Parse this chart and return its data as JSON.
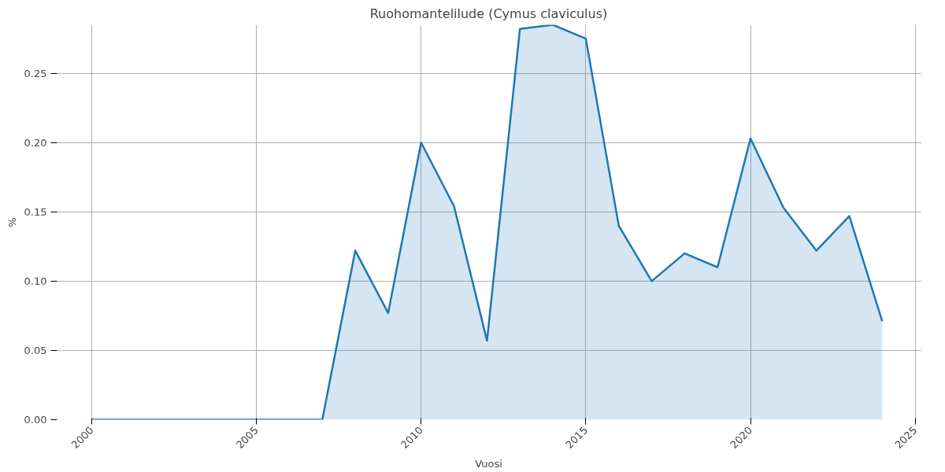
{
  "chart_data": {
    "type": "area",
    "title": "Ruohomantelilude (Cymus claviculus)",
    "xlabel": "Vuosi",
    "ylabel": "%",
    "x": [
      2000,
      2001,
      2002,
      2003,
      2004,
      2005,
      2006,
      2007,
      2008,
      2009,
      2010,
      2011,
      2012,
      2013,
      2014,
      2015,
      2016,
      2017,
      2018,
      2019,
      2020,
      2021,
      2022,
      2023,
      2024
    ],
    "series": [
      {
        "color": "#1f77b4",
        "values": [
          0,
          0,
          0,
          0,
          0,
          0,
          0,
          0,
          0.122,
          0.077,
          0.2,
          0.154,
          0.057,
          0.282,
          0.285,
          0.275,
          0.14,
          0.1,
          0.12,
          0.11,
          0.203,
          0.153,
          0.122,
          0.147,
          0.071
        ]
      }
    ],
    "xlim": [
      1998.9,
      2025.2
    ],
    "ylim": [
      0,
      0.285
    ],
    "xticks": [
      2000,
      2005,
      2010,
      2015,
      2020,
      2025
    ],
    "yticks": [
      {
        "value": 0,
        "label": "0.00"
      },
      {
        "value": 0.05,
        "label": "0.05"
      },
      {
        "value": 0.1,
        "label": "0.10"
      },
      {
        "value": 0.15,
        "label": "0.15"
      },
      {
        "value": 0.2,
        "label": "0.20"
      },
      {
        "value": 0.25,
        "label": "0.25"
      }
    ],
    "grid": true
  }
}
